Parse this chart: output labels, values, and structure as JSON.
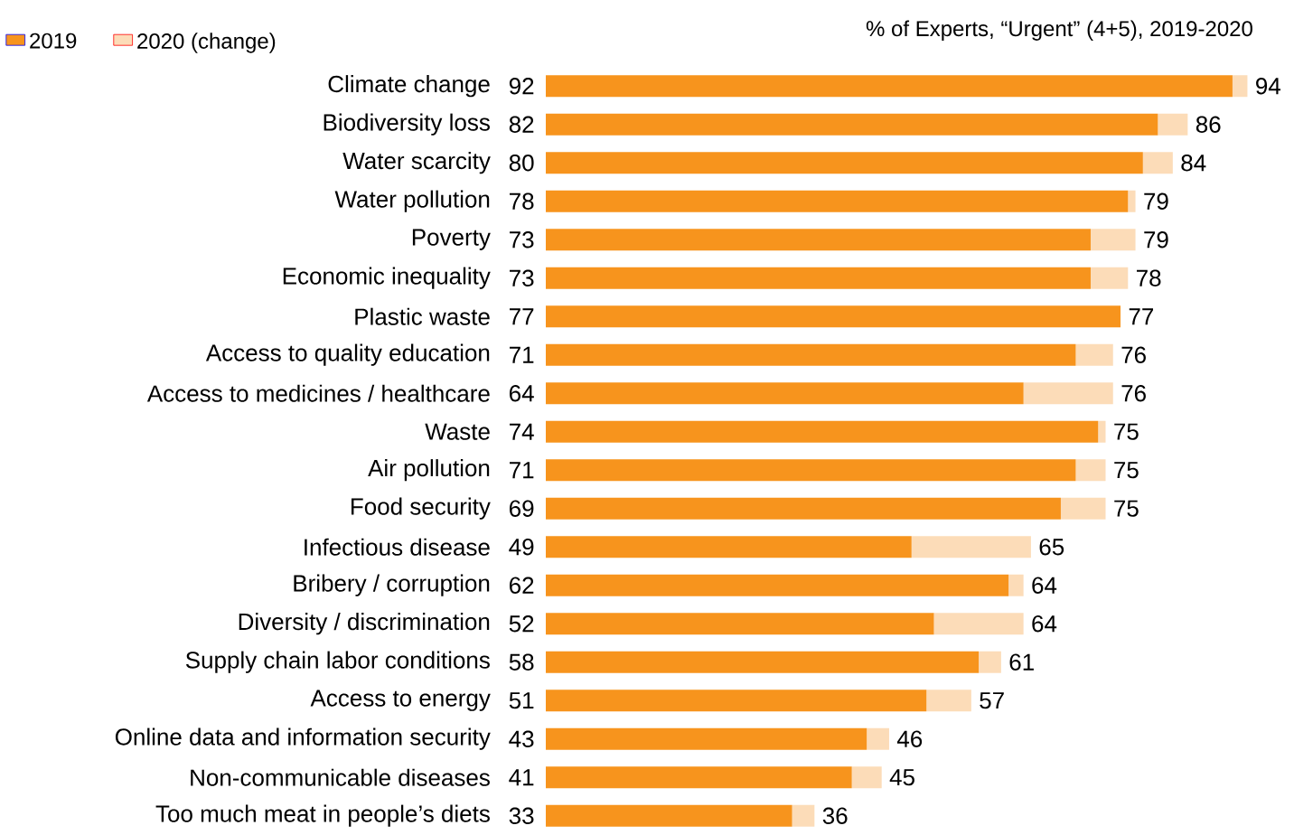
{
  "chart_data": {
    "type": "bar",
    "orientation": "horizontal",
    "stacked": true,
    "title": "% of Experts, “Urgent” (4+5), 2019-2020",
    "categories": [
      "Climate change",
      "Biodiversity loss",
      "Water scarcity",
      "Water pollution",
      "Poverty",
      "Economic inequality",
      "Plastic waste",
      "Access to quality education",
      "Access to medicines / healthcare",
      "Waste",
      "Air pollution",
      "Food security",
      "Infectious disease",
      "Bribery / corruption",
      "Diversity / discrimination",
      "Supply chain labor conditions",
      "Access to energy",
      "Online data and information security",
      "Non-communicable diseases",
      "Too much meat in people’s diets"
    ],
    "series": [
      {
        "name": "2019",
        "color": "#f7941d",
        "values": [
          92,
          82,
          80,
          78,
          73,
          73,
          77,
          71,
          64,
          74,
          71,
          69,
          49,
          62,
          52,
          58,
          51,
          43,
          41,
          33
        ],
        "value_labels": [
          "92",
          "82",
          "80",
          "78",
          "73",
          "73",
          "77",
          "71",
          "64",
          "74",
          "71",
          "69",
          "49",
          "62",
          "52",
          "58",
          "51",
          "43",
          "41",
          "33"
        ]
      },
      {
        "name": "2020 (change)",
        "color": "#fcdcb8",
        "values": [
          2,
          4,
          4,
          1,
          6,
          5,
          0,
          5,
          12,
          1,
          4,
          6,
          16,
          2,
          12,
          3,
          6,
          3,
          4,
          3
        ]
      }
    ],
    "totals": [
      "94",
      "86",
      "84",
      "79",
      "79",
      "78",
      "77",
      "76",
      "76",
      "75",
      "75",
      "75",
      "65",
      "64",
      "64",
      "61",
      "57",
      "46",
      "45",
      "36"
    ],
    "legend": "top left"
  }
}
